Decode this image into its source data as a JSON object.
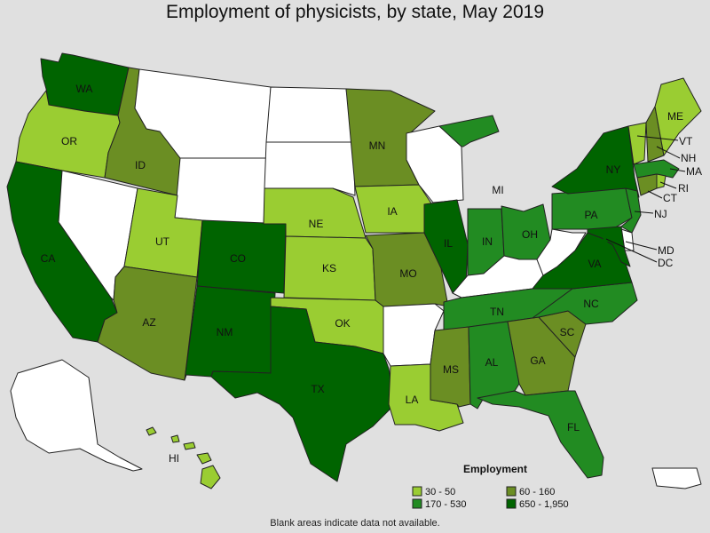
{
  "title": "Employment of physicists, by state, May 2019",
  "footnote": "Blank areas indicate data not available.",
  "legend": {
    "title": "Employment",
    "bins": [
      {
        "id": "b1",
        "label": "30 - 50",
        "color": "#9acd32"
      },
      {
        "id": "b2",
        "label": "60 - 160",
        "color": "#6b8e23"
      },
      {
        "id": "b3",
        "label": "170 - 530",
        "color": "#228b22"
      },
      {
        "id": "b4",
        "label": "650 - 1,950",
        "color": "#006400"
      }
    ],
    "no_data_color": "#ffffff"
  },
  "state_bins": {
    "WA": "b4",
    "OR": "b1",
    "CA": "b4",
    "ID": "b2",
    "NV": null,
    "MT": null,
    "WY": null,
    "UT": "b1",
    "AZ": "b2",
    "CO": "b4",
    "NM": "b4",
    "ND": null,
    "SD": null,
    "NE": "b1",
    "KS": "b1",
    "OK": "b1",
    "TX": "b4",
    "MN": "b2",
    "IA": "b1",
    "MO": "b2",
    "AR": null,
    "LA": "b1",
    "WI": null,
    "IL": "b4",
    "MI": "b3",
    "IN": "b3",
    "OH": "b3",
    "KY": null,
    "TN": "b3",
    "MS": "b2",
    "AL": "b3",
    "GA": "b2",
    "FL": "b3",
    "SC": "b2",
    "NC": "b3",
    "VA": "b4",
    "WV": null,
    "PA": "b3",
    "NY": "b4",
    "VT": "b1",
    "NH": "b2",
    "ME": "b1",
    "MA": "b3",
    "RI": "b1",
    "CT": "b2",
    "NJ": "b3",
    "DE": null,
    "MD": "b4",
    "DC": "b4",
    "AK": null,
    "HI": "b1",
    "PR": null
  },
  "state_labels": {
    "WA": "WA",
    "OR": "OR",
    "CA": "CA",
    "ID": "ID",
    "UT": "UT",
    "AZ": "AZ",
    "CO": "CO",
    "NM": "NM",
    "NE": "NE",
    "KS": "KS",
    "OK": "OK",
    "TX": "TX",
    "MN": "MN",
    "IA": "IA",
    "MO": "MO",
    "LA": "LA",
    "IL": "IL",
    "MI": "MI",
    "IN": "IN",
    "OH": "OH",
    "TN": "TN",
    "MS": "MS",
    "AL": "AL",
    "GA": "GA",
    "FL": "FL",
    "SC": "SC",
    "NC": "NC",
    "VA": "VA",
    "PA": "PA",
    "NY": "NY",
    "ME": "ME",
    "VT": "VT",
    "NH": "NH",
    "MA": "MA",
    "RI": "RI",
    "CT": "CT",
    "NJ": "NJ",
    "MD": "MD",
    "DC": "DC",
    "HI": "HI"
  }
}
